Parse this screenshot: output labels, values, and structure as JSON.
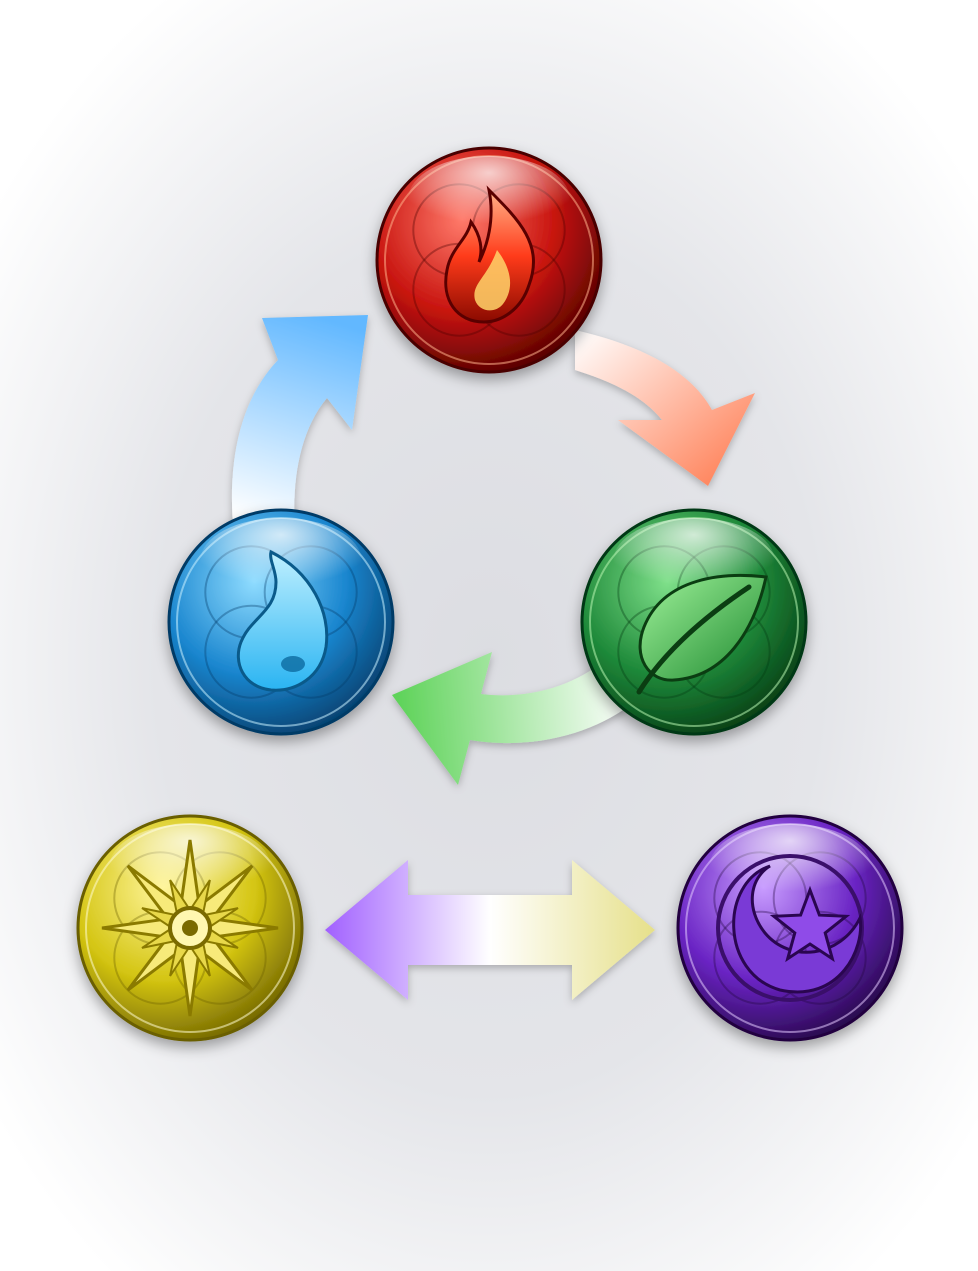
{
  "diagram": {
    "background": {
      "center": "#dcdde2",
      "edge": "#ffffff"
    },
    "orbs": [
      {
        "id": "fire",
        "element": "fire",
        "icon": "flame-icon",
        "colors": {
          "light": "#ff7a6a",
          "mid": "#c8140f",
          "dark": "#4a0000",
          "glow": "#ffb08a"
        }
      },
      {
        "id": "wood",
        "element": "wood",
        "icon": "leaf-icon",
        "colors": {
          "light": "#7fe08a",
          "mid": "#1f8a3a",
          "dark": "#033812",
          "glow": "#b8f5b0"
        }
      },
      {
        "id": "water",
        "element": "water",
        "icon": "water-drop-icon",
        "colors": {
          "light": "#8fdcff",
          "mid": "#1a86cf",
          "dark": "#033a66",
          "glow": "#c8f1ff"
        }
      },
      {
        "id": "light",
        "element": "light",
        "icon": "sun-star-icon",
        "colors": {
          "light": "#fff59a",
          "mid": "#d4c512",
          "dark": "#6a5e00",
          "glow": "#fffbd0"
        }
      },
      {
        "id": "dark",
        "element": "dark",
        "icon": "moon-star-icon",
        "colors": {
          "light": "#c89cff",
          "mid": "#6a24c4",
          "dark": "#21063f",
          "glow": "#e2c9ff"
        }
      }
    ],
    "arrows": [
      {
        "id": "fire-to-wood",
        "from": "fire",
        "to": "wood",
        "colors": [
          "#ffffff",
          "#ff8a64"
        ]
      },
      {
        "id": "wood-to-water",
        "from": "wood",
        "to": "water",
        "colors": [
          "#ffffff",
          "#5fd35a"
        ]
      },
      {
        "id": "water-to-fire",
        "from": "water",
        "to": "fire",
        "colors": [
          "#ffffff",
          "#62b8ff"
        ]
      },
      {
        "id": "light-dark",
        "from": "light",
        "to": "dark",
        "bidirectional": true,
        "colors": [
          "#a160ff",
          "#ffffff",
          "#e6e08a"
        ]
      }
    ]
  }
}
